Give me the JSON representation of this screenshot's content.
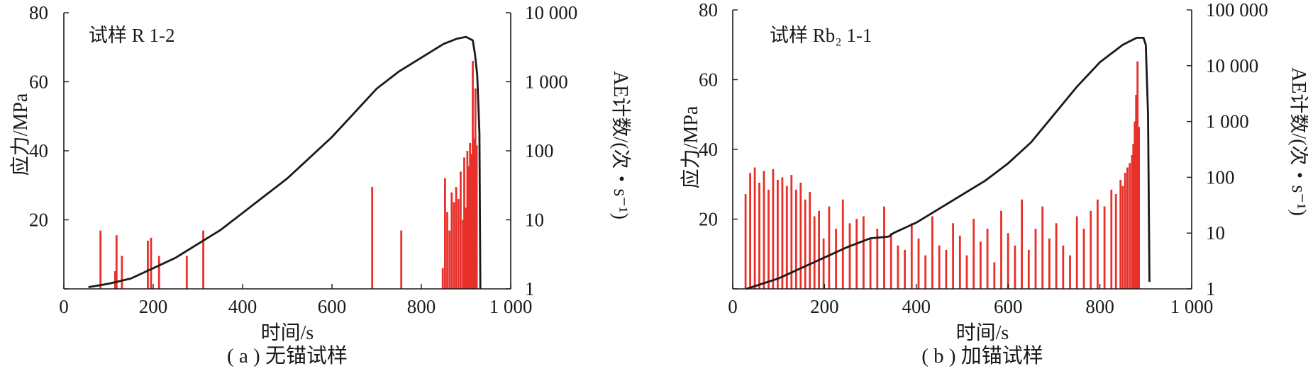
{
  "figure": {
    "captions": [
      "( a ) 无锚试样",
      "( b ) 加锚试样"
    ]
  },
  "colors": {
    "stress_line": "#1a1a1a",
    "ae_bars": "#e8302a",
    "axes": "#1a1a1a"
  },
  "chart_data": [
    {
      "type": "line+bar",
      "panel": "a",
      "title": "",
      "caption": "( a ) 无锚试样",
      "specimen_label": "试样 R 1-2",
      "xlabel": "时间/s",
      "ylabel": "应力/MPa",
      "y2label": "AE计数/(次・s⁻¹)",
      "xlim": [
        0,
        1000
      ],
      "ylim": [
        0,
        80
      ],
      "y2lim": [
        1,
        10000
      ],
      "y2_scale": "log",
      "x_ticks": [
        0,
        200,
        400,
        600,
        800,
        1000
      ],
      "x_tick_labels": [
        "0",
        "200",
        "400",
        "600",
        "800",
        "1 000"
      ],
      "y_ticks": [
        0,
        20,
        40,
        60,
        80
      ],
      "y_tick_labels": [
        "",
        "20",
        "40",
        "60",
        "80"
      ],
      "y2_ticks": [
        1,
        10,
        100,
        1000,
        10000
      ],
      "y2_tick_labels": [
        "1",
        "10",
        "100",
        "1 000",
        "10 000"
      ],
      "series": [
        {
          "kind": "line",
          "axis": "left",
          "x": [
            55,
            100,
            150,
            200,
            250,
            300,
            350,
            400,
            450,
            500,
            550,
            600,
            650,
            700,
            750,
            800,
            850,
            880,
            900,
            915,
            920,
            925,
            930,
            932
          ],
          "y": [
            0.5,
            1.5,
            3,
            6,
            9,
            13,
            17,
            22,
            27,
            32,
            38,
            44,
            51,
            58,
            63,
            67,
            71,
            72.5,
            73,
            72,
            68,
            62,
            45,
            0
          ]
        },
        {
          "kind": "bar",
          "axis": "right",
          "x": [
            82,
            115,
            118,
            130,
            188,
            195,
            213,
            275,
            312,
            690,
            755,
            848,
            853,
            858,
            863,
            868,
            873,
            878,
            883,
            888,
            893,
            896,
            900,
            903,
            906,
            909,
            912,
            915,
            918,
            921,
            924
          ],
          "values": [
            7,
            1.8,
            6,
            3,
            5,
            5.5,
            3,
            3,
            7,
            30,
            7,
            2,
            40,
            13,
            7,
            25,
            18,
            30,
            20,
            50,
            10,
            80,
            15,
            100,
            60,
            130,
            90,
            2000,
            150,
            800,
            120
          ]
        }
      ]
    },
    {
      "type": "line+bar",
      "panel": "b",
      "title": "",
      "caption": "( b ) 加锚试样",
      "specimen_label": "试样 Rb₂ 1-1",
      "xlabel": "时间/s",
      "ylabel": "应力/MPa",
      "y2label": "AE计数/(次・s⁻¹)",
      "xlim": [
        0,
        1000
      ],
      "ylim": [
        0,
        80
      ],
      "y2lim": [
        1,
        100000
      ],
      "y2_scale": "log",
      "x_ticks": [
        0,
        200,
        400,
        600,
        800,
        1000
      ],
      "x_tick_labels": [
        "0",
        "200",
        "400",
        "600",
        "800",
        "1 000"
      ],
      "y_ticks": [
        0,
        20,
        40,
        60,
        80
      ],
      "y_tick_labels": [
        "",
        "20",
        "40",
        "60",
        "80"
      ],
      "y2_ticks": [
        1,
        10,
        100,
        1000,
        10000,
        100000
      ],
      "y2_tick_labels": [
        "1",
        "10",
        "100",
        "1 000",
        "10 000",
        "100 000"
      ],
      "series": [
        {
          "kind": "line",
          "axis": "left",
          "x": [
            30,
            100,
            150,
            200,
            250,
            300,
            340,
            350,
            400,
            450,
            500,
            550,
            600,
            650,
            700,
            750,
            800,
            850,
            880,
            895,
            900,
            905,
            908
          ],
          "y": [
            0,
            3,
            6,
            9,
            12,
            14.5,
            15,
            16,
            19,
            23,
            27,
            31,
            36,
            42,
            50,
            58,
            65,
            70,
            72,
            72,
            70,
            50,
            2
          ]
        },
        {
          "kind": "bar",
          "axis": "right",
          "x": [
            28,
            38,
            48,
            58,
            68,
            78,
            88,
            98,
            108,
            118,
            128,
            138,
            148,
            158,
            168,
            178,
            188,
            198,
            210,
            225,
            240,
            255,
            270,
            285,
            300,
            315,
            330,
            345,
            360,
            375,
            390,
            405,
            420,
            435,
            450,
            465,
            480,
            495,
            510,
            525,
            540,
            555,
            570,
            585,
            600,
            615,
            630,
            645,
            660,
            675,
            690,
            705,
            720,
            735,
            750,
            765,
            780,
            795,
            810,
            825,
            835,
            845,
            850,
            855,
            860,
            865,
            870,
            873,
            876,
            879,
            882,
            885
          ],
          "values": [
            50,
            120,
            150,
            80,
            130,
            60,
            140,
            90,
            100,
            70,
            110,
            60,
            80,
            40,
            55,
            20,
            25,
            8,
            30,
            12,
            40,
            15,
            18,
            20,
            8,
            12,
            30,
            10,
            6,
            5,
            15,
            8,
            4,
            20,
            6,
            5,
            15,
            9,
            4,
            18,
            7,
            12,
            3,
            25,
            10,
            6,
            40,
            5,
            12,
            30,
            8,
            15,
            6,
            4,
            20,
            12,
            25,
            40,
            30,
            60,
            50,
            90,
            70,
            120,
            150,
            180,
            250,
            400,
            1000,
            3000,
            12000,
            800
          ]
        }
      ]
    }
  ]
}
